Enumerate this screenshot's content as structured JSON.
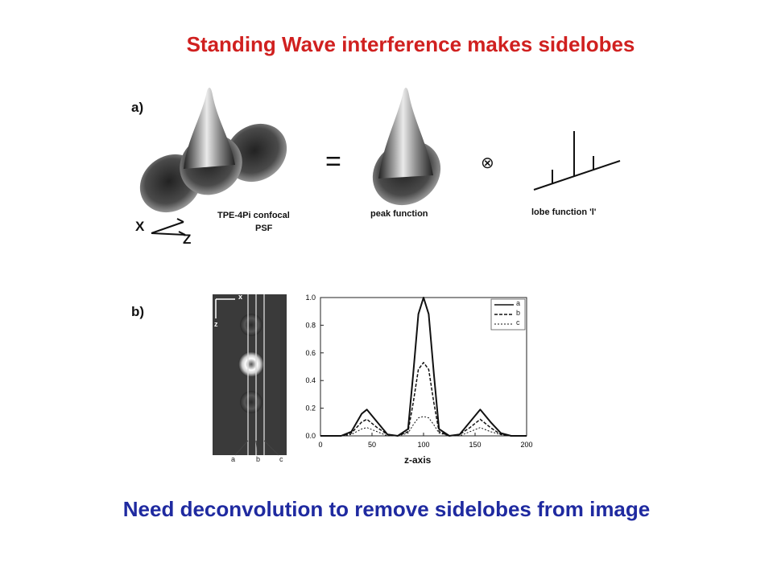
{
  "slide": {
    "title": "Standing Wave interference makes sidelobes",
    "title_color": "#d0201f",
    "footer": "Need deconvolution to remove sidelobes from image",
    "footer_color": "#1f2aa0"
  },
  "panel_a": {
    "label": "a)",
    "psf_label_1": "TPE-4Pi confocal",
    "psf_label_2": "PSF",
    "peak_label": "peak function",
    "lobe_label": "lobe function 'l'",
    "equals": "=",
    "convolve": "⊗",
    "axis_x": "X",
    "axis_z": "Z"
  },
  "panel_b": {
    "label": "b)",
    "image_axis_x": "x",
    "image_axis_z": "z",
    "line_labels": [
      "a",
      "b",
      "c"
    ]
  },
  "chart_data": {
    "type": "line",
    "xlabel": "z-axis",
    "ylabel": "",
    "xlim": [
      0,
      200
    ],
    "ylim": [
      0,
      1.0
    ],
    "xticks": [
      "0",
      "50",
      "100",
      "150",
      "200"
    ],
    "yticks": [
      "0.0",
      "0.2",
      "0.4",
      "0.6",
      "0.8",
      "1.0"
    ],
    "legend": [
      "a",
      "b",
      "c"
    ],
    "legend_position": "top-right",
    "series": [
      {
        "name": "a",
        "style": "solid",
        "x": [
          0,
          20,
          30,
          40,
          45,
          55,
          65,
          75,
          85,
          90,
          95,
          100,
          105,
          110,
          115,
          125,
          135,
          145,
          155,
          165,
          175,
          185,
          200
        ],
        "y": [
          0,
          0,
          0.03,
          0.16,
          0.19,
          0.1,
          0.01,
          0,
          0.05,
          0.45,
          0.88,
          1.0,
          0.88,
          0.45,
          0.05,
          0,
          0.01,
          0.1,
          0.19,
          0.1,
          0.02,
          0,
          0
        ]
      },
      {
        "name": "b",
        "style": "dashed",
        "x": [
          0,
          20,
          30,
          40,
          45,
          55,
          65,
          75,
          85,
          90,
          95,
          100,
          105,
          110,
          115,
          125,
          135,
          145,
          155,
          165,
          175,
          185,
          200
        ],
        "y": [
          0,
          0,
          0.02,
          0.1,
          0.12,
          0.06,
          0.01,
          0,
          0.03,
          0.24,
          0.48,
          0.53,
          0.48,
          0.24,
          0.03,
          0,
          0.01,
          0.06,
          0.12,
          0.06,
          0.01,
          0,
          0
        ]
      },
      {
        "name": "c",
        "style": "dotted",
        "x": [
          0,
          20,
          30,
          40,
          45,
          55,
          65,
          75,
          85,
          90,
          95,
          100,
          105,
          110,
          115,
          125,
          135,
          145,
          155,
          165,
          175,
          185,
          200
        ],
        "y": [
          0,
          0,
          0.01,
          0.05,
          0.06,
          0.03,
          0,
          0,
          0.02,
          0.08,
          0.13,
          0.14,
          0.13,
          0.08,
          0.02,
          0,
          0,
          0.03,
          0.06,
          0.03,
          0.01,
          0,
          0
        ]
      }
    ]
  }
}
